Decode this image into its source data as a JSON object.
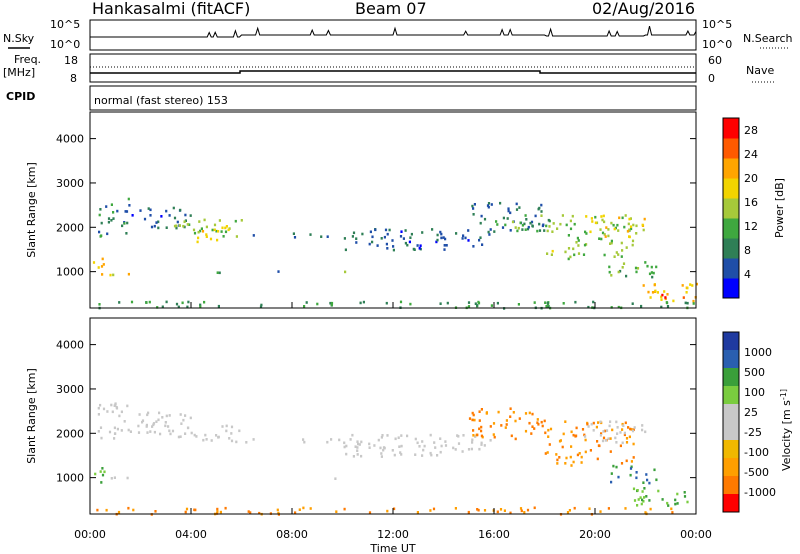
{
  "header": {
    "radar": "Hankasalmi (fitACF)",
    "beam": "Beam 07",
    "date": "02/Aug/2016"
  },
  "noise_panel": {
    "left_label": "N.Sky",
    "left_ticks": [
      "10^5",
      "10^0"
    ],
    "right_ticks": [
      "10^5",
      "10^0"
    ],
    "right_label": "N.Search"
  },
  "freq_panel": {
    "left_label_1": "Freq.",
    "left_label_2": "[MHz]",
    "left_ticks": [
      "18",
      "8"
    ],
    "right_ticks": [
      "60",
      "0"
    ],
    "right_label": "Nave"
  },
  "cpid_panel": {
    "label": "CPID",
    "text": "normal (fast stereo) 153"
  },
  "colors": {
    "power": [
      "#0000ff",
      "#1f4ea8",
      "#2f7f56",
      "#3fa83f",
      "#a6c93a",
      "#f2d400",
      "#ffa500",
      "#ff5a00",
      "#ff0000"
    ],
    "velocity": [
      "#ff0000",
      "#ff7a00",
      "#ff9f00",
      "#f0b800",
      "#c8c8c8",
      "#c8c8c8",
      "#7acc3f",
      "#3a9f3a",
      "#2a5fb0",
      "#1f3aa0"
    ]
  },
  "chart_data": [
    {
      "type": "heatmap",
      "name": "power",
      "ylabel": "Slant Range [km]",
      "xlabel": "Time UT",
      "xticks": [
        "00:00",
        "04:00",
        "08:00",
        "12:00",
        "16:00",
        "20:00",
        "00:00"
      ],
      "yticks": [
        "1000",
        "2000",
        "3000",
        "4000"
      ],
      "ylim": [
        180,
        4600
      ],
      "xlim_hours": [
        0,
        24
      ],
      "colorbar_label": "Power [dB]",
      "colorbar_ticks": [
        "4",
        "8",
        "12",
        "16",
        "20",
        "24",
        "28"
      ],
      "colorbar_range": [
        0,
        30
      ],
      "regions": [
        {
          "t": [
            0.1,
            0.6
          ],
          "r": [
            900,
            1400
          ],
          "level": 20
        },
        {
          "t": [
            0.3,
            1.6
          ],
          "r": [
            1800,
            2700
          ],
          "level": 8
        },
        {
          "t": [
            0.6,
            1.6
          ],
          "r": [
            950,
            1050
          ],
          "level": 18
        },
        {
          "t": [
            1.6,
            4.0
          ],
          "r": [
            2000,
            2500
          ],
          "level": 6
        },
        {
          "t": [
            3.0,
            6.0
          ],
          "r": [
            1800,
            2200
          ],
          "level": 14
        },
        {
          "t": [
            4.2,
            5.6
          ],
          "r": [
            1700,
            2100
          ],
          "level": 18
        },
        {
          "t": [
            5.0,
            6.2
          ],
          "r": [
            980,
            1060
          ],
          "level": 12
        },
        {
          "t": [
            6.0,
            10.0
          ],
          "r": [
            1800,
            1900
          ],
          "level": 6
        },
        {
          "t": [
            7.0,
            9.0
          ],
          "r": [
            980,
            1050
          ],
          "level": 8
        },
        {
          "t": [
            9.5,
            10.8
          ],
          "r": [
            980,
            1040
          ],
          "level": 14
        },
        {
          "t": [
            10.0,
            16.0
          ],
          "r": [
            1500,
            2000
          ],
          "level": 6
        },
        {
          "t": [
            15.0,
            18.0
          ],
          "r": [
            1900,
            2600
          ],
          "level": 7
        },
        {
          "t": [
            16.0,
            18.5
          ],
          "r": [
            1900,
            2300
          ],
          "level": 12
        },
        {
          "t": [
            18.0,
            21.5
          ],
          "r": [
            1300,
            2300
          ],
          "level": 14
        },
        {
          "t": [
            19.5,
            22.0
          ],
          "r": [
            1800,
            2300
          ],
          "level": 18
        },
        {
          "t": [
            20.5,
            22.5
          ],
          "r": [
            900,
            1300
          ],
          "level": 12
        },
        {
          "t": [
            21.5,
            24.0
          ],
          "r": [
            350,
            800
          ],
          "level": 20
        },
        {
          "t": [
            22.5,
            24.0
          ],
          "r": [
            380,
            520
          ],
          "level": 26
        },
        {
          "t": [
            0.0,
            24.0
          ],
          "r": [
            200,
            350
          ],
          "level": 10
        }
      ]
    },
    {
      "type": "heatmap",
      "name": "velocity",
      "ylabel": "Slant Range [km]",
      "xlabel": "Time UT",
      "xticks": [
        "00:00",
        "04:00",
        "08:00",
        "12:00",
        "16:00",
        "20:00",
        "00:00"
      ],
      "yticks": [
        "1000",
        "2000",
        "3000",
        "4000"
      ],
      "ylim": [
        180,
        4600
      ],
      "xlim_hours": [
        0,
        24
      ],
      "colorbar_label": "Velocity [m s^-1]",
      "colorbar_ticks": [
        "1000",
        "500",
        "100",
        "25",
        "-25",
        "-100",
        "-500",
        "-1000"
      ],
      "regions": [
        {
          "t": [
            0.1,
            0.6
          ],
          "r": [
            900,
            1400
          ],
          "level": 100
        },
        {
          "t": [
            0.3,
            1.6
          ],
          "r": [
            1800,
            2700
          ],
          "level": 0
        },
        {
          "t": [
            0.6,
            1.6
          ],
          "r": [
            950,
            1050
          ],
          "level": 0
        },
        {
          "t": [
            1.6,
            4.0
          ],
          "r": [
            2000,
            2500
          ],
          "level": 0
        },
        {
          "t": [
            3.0,
            6.0
          ],
          "r": [
            1800,
            2200
          ],
          "level": 0
        },
        {
          "t": [
            6.0,
            10.0
          ],
          "r": [
            1800,
            1900
          ],
          "level": 0
        },
        {
          "t": [
            9.5,
            10.8
          ],
          "r": [
            980,
            1040
          ],
          "level": 0
        },
        {
          "t": [
            10.0,
            16.0
          ],
          "r": [
            1500,
            2000
          ],
          "level": 0
        },
        {
          "t": [
            15.0,
            18.0
          ],
          "r": [
            1900,
            2600
          ],
          "level": -100
        },
        {
          "t": [
            18.0,
            21.5
          ],
          "r": [
            1300,
            2300
          ],
          "level": -100
        },
        {
          "t": [
            19.5,
            22.0
          ],
          "r": [
            1800,
            2300
          ],
          "level": 0
        },
        {
          "t": [
            20.5,
            22.5
          ],
          "r": [
            900,
            1300
          ],
          "level": 500
        },
        {
          "t": [
            21.5,
            24.0
          ],
          "r": [
            350,
            800
          ],
          "level": 100
        },
        {
          "t": [
            0.0,
            24.0
          ],
          "r": [
            200,
            350
          ],
          "level": -100
        }
      ]
    }
  ]
}
